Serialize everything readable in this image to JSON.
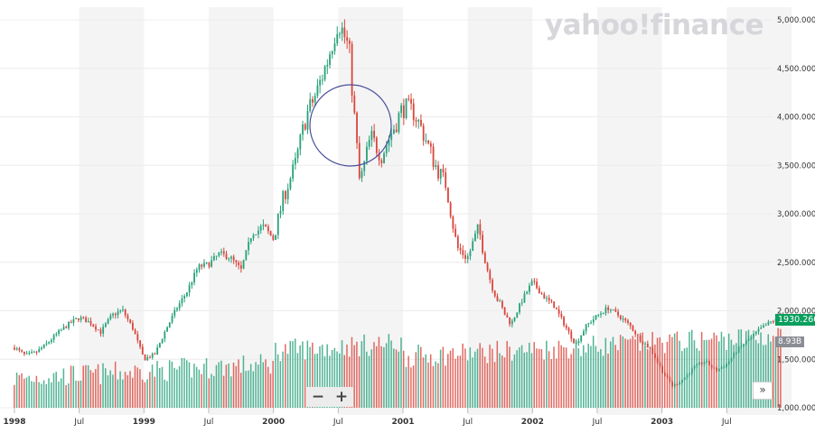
{
  "brand": {
    "logo_text": "yahoo!finance"
  },
  "controls": {
    "zoom_out": "−",
    "zoom_in": "+",
    "scroll_right": "»"
  },
  "badges": {
    "last_price": "1930.260",
    "last_volume": "8.93B"
  },
  "colors": {
    "up": "#26a17b",
    "down": "#d9453b",
    "band": "#f4f4f4",
    "annotation": "#4b4e9c",
    "price_badge": "#0b9f5e"
  },
  "chart_data": {
    "type": "candlestick",
    "x_tick_labels": [
      "1998",
      "Jul",
      "1999",
      "Jul",
      "2000",
      "Jul",
      "2001",
      "Jul",
      "2002",
      "Jul",
      "2003",
      "Jul"
    ],
    "y_tick_labels": [
      "5,000.000",
      "4,500.000",
      "4,000.000",
      "3,500.000",
      "3,000.000",
      "2,500.000",
      "2,000.000",
      "1,500.000",
      "1,000.000"
    ],
    "ylim": [
      1000,
      5000
    ],
    "annotation": {
      "shape": "circle",
      "period": "2000 Jun–Oct"
    },
    "close_path": [
      [
        "1998-01",
        1620
      ],
      [
        "1998-02",
        1540
      ],
      [
        "1998-03",
        1570
      ],
      [
        "1998-04",
        1660
      ],
      [
        "1998-05",
        1770
      ],
      [
        "1998-06",
        1860
      ],
      [
        "1998-07",
        1930
      ],
      [
        "1998-08",
        1880
      ],
      [
        "1998-09",
        1780
      ],
      [
        "1998-10",
        1950
      ],
      [
        "1998-11",
        2010
      ],
      [
        "1998-12",
        1810
      ],
      [
        "1999-01",
        1500
      ],
      [
        "1999-02",
        1550
      ],
      [
        "1999-03",
        1800
      ],
      [
        "1999-04",
        2020
      ],
      [
        "1999-05",
        2200
      ],
      [
        "1999-06",
        2450
      ],
      [
        "1999-07",
        2480
      ],
      [
        "1999-08",
        2590
      ],
      [
        "1999-09",
        2550
      ],
      [
        "1999-10",
        2420
      ],
      [
        "1999-11",
        2800
      ],
      [
        "1999-12",
        2850
      ],
      [
        "2000-01",
        2750
      ],
      [
        "2000-02",
        3200
      ],
      [
        "2000-03",
        3500
      ],
      [
        "2000-04",
        4000
      ],
      [
        "2000-05",
        4250
      ],
      [
        "2000-06",
        4580
      ],
      [
        "2000-07",
        5000
      ],
      [
        "2000-08",
        4700
      ],
      [
        "2000-09",
        3300
      ],
      [
        "2000-10",
        3800
      ],
      [
        "2000-11",
        3600
      ],
      [
        "2000-12",
        3850
      ],
      [
        "2001-01",
        4100
      ],
      [
        "2001-02",
        4050
      ],
      [
        "2001-03",
        3800
      ],
      [
        "2001-04",
        3500
      ],
      [
        "2001-05",
        3300
      ],
      [
        "2001-06",
        2650
      ],
      [
        "2001-07",
        2550
      ],
      [
        "2001-08",
        2850
      ],
      [
        "2001-09",
        2350
      ],
      [
        "2001-10",
        2050
      ],
      [
        "2001-11",
        1860
      ],
      [
        "2001-12",
        2100
      ],
      [
        "2002-01",
        2300
      ],
      [
        "2002-02",
        2150
      ],
      [
        "2002-03",
        2050
      ],
      [
        "2002-04",
        1850
      ],
      [
        "2002-05",
        1650
      ],
      [
        "2002-06",
        1850
      ],
      [
        "2002-07",
        1950
      ],
      [
        "2002-08",
        2030
      ],
      [
        "2002-09",
        1950
      ],
      [
        "2002-10",
        1850
      ],
      [
        "2002-11",
        1700
      ],
      [
        "2002-12",
        1600
      ],
      [
        "2003-01",
        1380
      ],
      [
        "2003-02",
        1220
      ],
      [
        "2003-03",
        1300
      ],
      [
        "2003-04",
        1420
      ],
      [
        "2003-05",
        1480
      ],
      [
        "2003-06",
        1380
      ],
      [
        "2003-07",
        1450
      ],
      [
        "2003-08",
        1600
      ],
      [
        "2003-09",
        1700
      ],
      [
        "2003-10",
        1800
      ],
      [
        "2003-11",
        1880
      ],
      [
        "2003-12",
        1930
      ]
    ]
  }
}
